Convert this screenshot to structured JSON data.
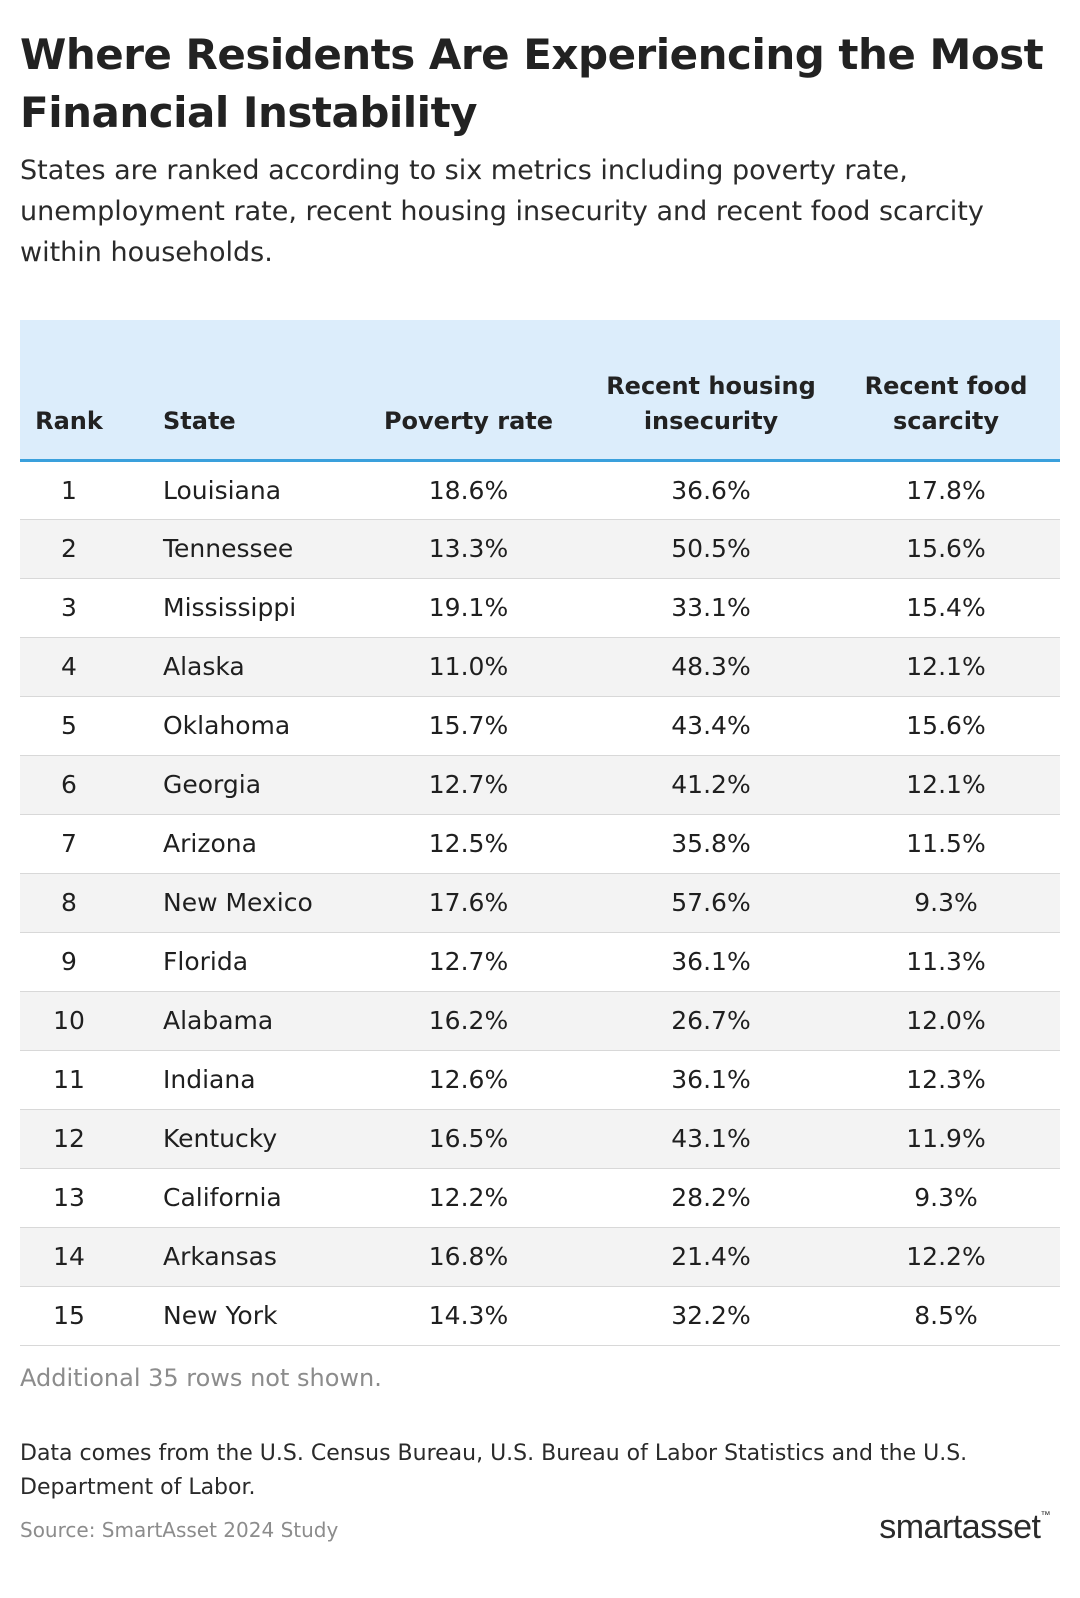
{
  "title": "Where Residents Are Experiencing the Most Financial Instability",
  "subtitle": "States are ranked according to six metrics including poverty rate, unemployment rate, recent housing insecurity and recent food scarcity within households.",
  "colors": {
    "header_bg": "#dcedfb",
    "header_rule": "#3aa0dc",
    "stripe": "#f3f3f3"
  },
  "chart_data": {
    "type": "table",
    "columns": [
      "Rank",
      "State",
      "Poverty rate",
      "Recent housing insecurity",
      "Recent food scarcity"
    ],
    "rows": [
      [
        "1",
        "Louisiana",
        "18.6%",
        "36.6%",
        "17.8%"
      ],
      [
        "2",
        "Tennessee",
        "13.3%",
        "50.5%",
        "15.6%"
      ],
      [
        "3",
        "Mississippi",
        "19.1%",
        "33.1%",
        "15.4%"
      ],
      [
        "4",
        "Alaska",
        "11.0%",
        "48.3%",
        "12.1%"
      ],
      [
        "5",
        "Oklahoma",
        "15.7%",
        "43.4%",
        "15.6%"
      ],
      [
        "6",
        "Georgia",
        "12.7%",
        "41.2%",
        "12.1%"
      ],
      [
        "7",
        "Arizona",
        "12.5%",
        "35.8%",
        "11.5%"
      ],
      [
        "8",
        "New Mexico",
        "17.6%",
        "57.6%",
        "9.3%"
      ],
      [
        "9",
        "Florida",
        "12.7%",
        "36.1%",
        "11.3%"
      ],
      [
        "10",
        "Alabama",
        "16.2%",
        "26.7%",
        "12.0%"
      ],
      [
        "11",
        "Indiana",
        "12.6%",
        "36.1%",
        "12.3%"
      ],
      [
        "12",
        "Kentucky",
        "16.5%",
        "43.1%",
        "11.9%"
      ],
      [
        "13",
        "California",
        "12.2%",
        "28.2%",
        "9.3%"
      ],
      [
        "14",
        "Arkansas",
        "16.8%",
        "21.4%",
        "12.2%"
      ],
      [
        "15",
        "New York",
        "14.3%",
        "32.2%",
        "8.5%"
      ]
    ]
  },
  "more_rows": "Additional 35 rows not shown.",
  "note": "Data comes from the U.S. Census Bureau, U.S. Bureau of Labor Statistics and the U.S. Department of Labor.",
  "source": "Source: SmartAsset 2024 Study",
  "logo": {
    "text": "smartasset",
    "tm": "™"
  }
}
